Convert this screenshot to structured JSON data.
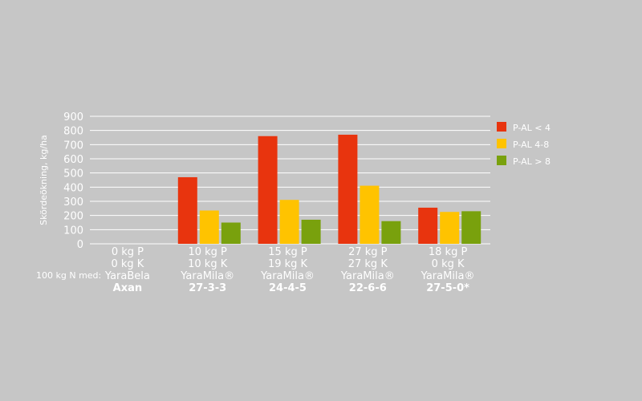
{
  "chart_data": {
    "type": "bar",
    "ylabel": "Skördeökning, kg/ha",
    "ylim": [
      0,
      900
    ],
    "yticks": [
      0,
      100,
      200,
      300,
      400,
      500,
      600,
      700,
      800,
      900
    ],
    "grid": true,
    "legend_position": "right",
    "row_prefix": "100 kg N med:",
    "categories": [
      [
        "0 kg P",
        "0 kg K",
        "YaraBela",
        "Axan"
      ],
      [
        "10 kg P",
        "10 kg K",
        "YaraMila®",
        "27-3-3"
      ],
      [
        "15 kg P",
        "19 kg K",
        "YaraMila®",
        "24-4-5"
      ],
      [
        "27 kg P",
        "27 kg K",
        "YaraMila®",
        "22-6-6"
      ],
      [
        "18 kg P",
        "0 kg K",
        "YaraMila®",
        "27-5-0*"
      ]
    ],
    "series": [
      {
        "name": "P-AL < 4",
        "color": "#e8340e",
        "values": [
          0,
          470,
          760,
          770,
          255
        ]
      },
      {
        "name": "P-AL 4-8",
        "color": "#ffc300",
        "values": [
          0,
          235,
          310,
          410,
          225
        ]
      },
      {
        "name": "P-AL > 8",
        "color": "#79a10d",
        "values": [
          0,
          150,
          170,
          160,
          230
        ]
      }
    ]
  }
}
